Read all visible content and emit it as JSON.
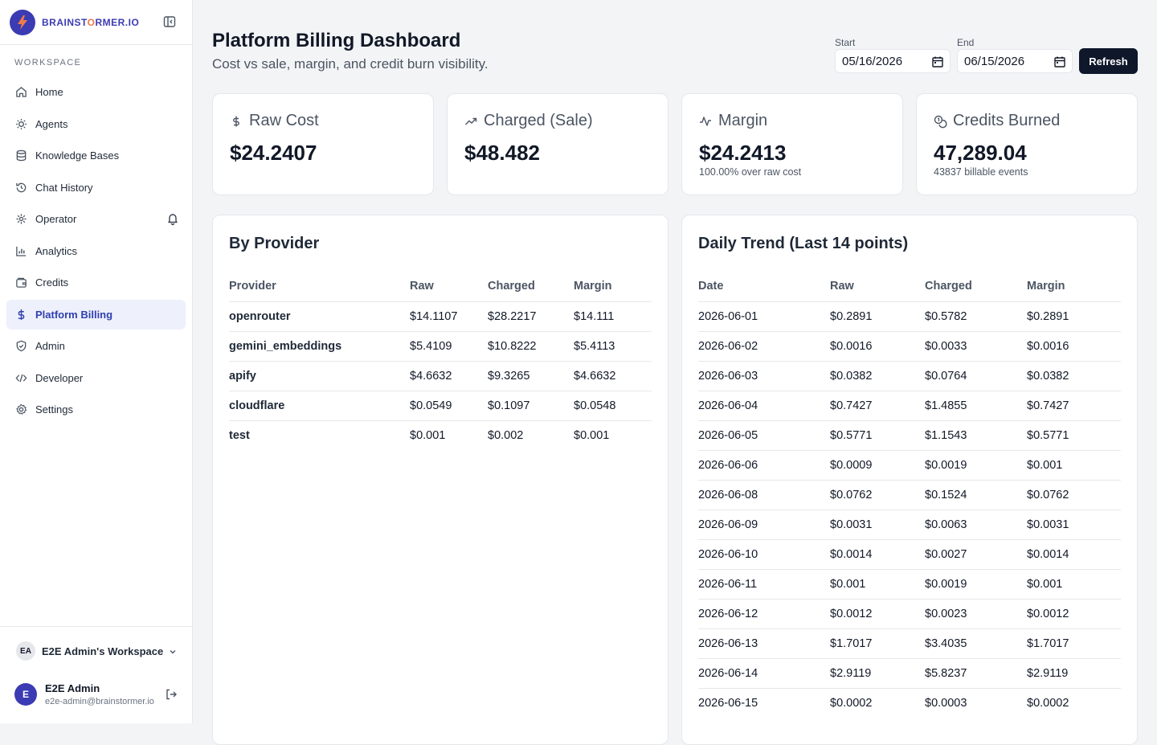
{
  "brand": {
    "name_part1": "BRAINST",
    "name_accent": "O",
    "name_part2": "RMER.IO"
  },
  "sidebar": {
    "section_label": "WORKSPACE",
    "items": [
      {
        "label": "Home",
        "icon": "home-icon"
      },
      {
        "label": "Agents",
        "icon": "agents-icon"
      },
      {
        "label": "Knowledge Bases",
        "icon": "database-icon"
      },
      {
        "label": "Chat History",
        "icon": "history-icon"
      },
      {
        "label": "Operator",
        "icon": "operator-icon"
      },
      {
        "label": "Analytics",
        "icon": "bar-chart-icon"
      },
      {
        "label": "Credits",
        "icon": "wallet-icon"
      },
      {
        "label": "Platform Billing",
        "icon": "dollar-icon",
        "active": true
      },
      {
        "label": "Admin",
        "icon": "shield-icon"
      },
      {
        "label": "Developer",
        "icon": "code-icon"
      },
      {
        "label": "Settings",
        "icon": "gear-icon"
      }
    ],
    "workspace": {
      "badge": "EA",
      "name": "E2E Admin's Workspace"
    },
    "user": {
      "initial": "E",
      "name": "E2E Admin",
      "email": "e2e-admin@brainstormer.io"
    }
  },
  "header": {
    "title": "Platform Billing Dashboard",
    "subtitle": "Cost vs sale, margin, and credit burn visibility.",
    "start_label": "Start",
    "start_value": "05/16/2026",
    "end_label": "End",
    "end_value": "06/15/2026",
    "refresh_label": "Refresh"
  },
  "cards": [
    {
      "title": "Raw Cost",
      "value": "$24.2407",
      "note": ""
    },
    {
      "title": "Charged (Sale)",
      "value": "$48.482",
      "note": ""
    },
    {
      "title": "Margin",
      "value": "$24.2413",
      "note": "100.00% over raw cost"
    },
    {
      "title": "Credits Burned",
      "value": "47,289.04",
      "note": "43837 billable events"
    }
  ],
  "by_provider": {
    "title": "By Provider",
    "columns": [
      "Provider",
      "Raw",
      "Charged",
      "Margin"
    ],
    "rows": [
      [
        "openrouter",
        "$14.1107",
        "$28.2217",
        "$14.111"
      ],
      [
        "gemini_embeddings",
        "$5.4109",
        "$10.8222",
        "$5.4113"
      ],
      [
        "apify",
        "$4.6632",
        "$9.3265",
        "$4.6632"
      ],
      [
        "cloudflare",
        "$0.0549",
        "$0.1097",
        "$0.0548"
      ],
      [
        "test",
        "$0.001",
        "$0.002",
        "$0.001"
      ]
    ]
  },
  "daily_trend": {
    "title": "Daily Trend (Last 14 points)",
    "columns": [
      "Date",
      "Raw",
      "Charged",
      "Margin"
    ],
    "rows": [
      [
        "2026-06-01",
        "$0.2891",
        "$0.5782",
        "$0.2891"
      ],
      [
        "2026-06-02",
        "$0.0016",
        "$0.0033",
        "$0.0016"
      ],
      [
        "2026-06-03",
        "$0.0382",
        "$0.0764",
        "$0.0382"
      ],
      [
        "2026-06-04",
        "$0.7427",
        "$1.4855",
        "$0.7427"
      ],
      [
        "2026-06-05",
        "$0.5771",
        "$1.1543",
        "$0.5771"
      ],
      [
        "2026-06-06",
        "$0.0009",
        "$0.0019",
        "$0.001"
      ],
      [
        "2026-06-08",
        "$0.0762",
        "$0.1524",
        "$0.0762"
      ],
      [
        "2026-06-09",
        "$0.0031",
        "$0.0063",
        "$0.0031"
      ],
      [
        "2026-06-10",
        "$0.0014",
        "$0.0027",
        "$0.0014"
      ],
      [
        "2026-06-11",
        "$0.001",
        "$0.0019",
        "$0.001"
      ],
      [
        "2026-06-12",
        "$0.0012",
        "$0.0023",
        "$0.0012"
      ],
      [
        "2026-06-13",
        "$1.7017",
        "$3.4035",
        "$1.7017"
      ],
      [
        "2026-06-14",
        "$2.9119",
        "$5.8237",
        "$2.9119"
      ],
      [
        "2026-06-15",
        "$0.0002",
        "$0.0003",
        "$0.0002"
      ]
    ]
  },
  "colors": {
    "brand": "#3b3bb3",
    "brand_accent": "#ef7b4a",
    "active_bg": "#eef0fb",
    "active_text": "#2f3fb0",
    "button_bg": "#0f172a"
  }
}
